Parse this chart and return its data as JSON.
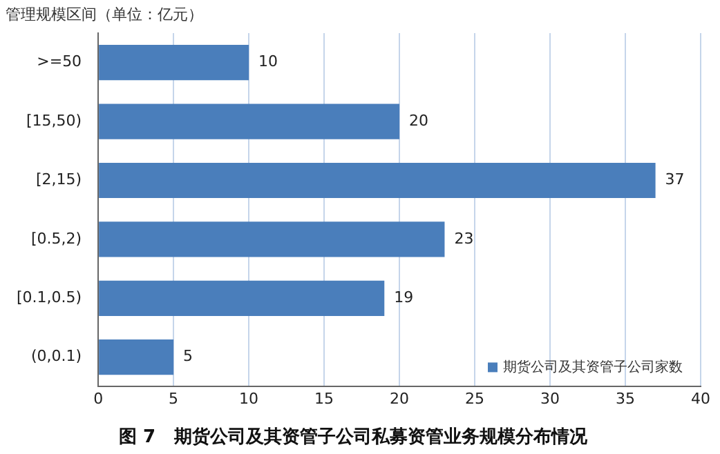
{
  "chart_data": {
    "type": "bar",
    "orientation": "horizontal",
    "title": "图 7   期货公司及其资管子公司私募资管业务规模分布情况",
    "ylabel": "管理规模区间（单位：亿元）",
    "categories": [
      ">=50",
      "[15,50)",
      "[2,15)",
      "[0.5,2)",
      "[0.1,0.5)",
      "(0,0.1)"
    ],
    "series": [
      {
        "name": "期货公司及其资管子公司家数",
        "color": "#4a7ebb",
        "values": [
          10,
          20,
          37,
          23,
          19,
          5
        ]
      }
    ],
    "xlim": [
      0,
      40
    ],
    "xticks": [
      0,
      5,
      10,
      15,
      20,
      25,
      30,
      35,
      40
    ],
    "grid": "x",
    "legend": "bottom right",
    "data_labels": true
  }
}
